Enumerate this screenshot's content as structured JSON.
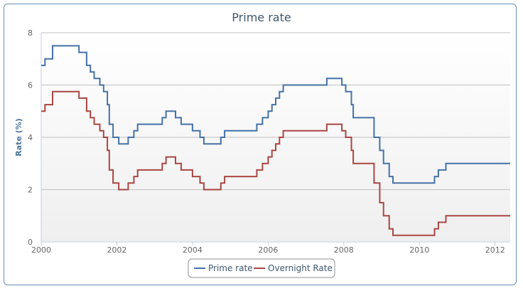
{
  "chart_data": {
    "type": "line",
    "title": "Prime rate",
    "ylabel": "Rate  (%)",
    "xlabel": "",
    "xlim": [
      2000.0,
      2012.4
    ],
    "ylim": [
      0,
      8
    ],
    "x_ticks": [
      2000,
      2002,
      2004,
      2006,
      2008,
      2010,
      2012
    ],
    "y_ticks": [
      0,
      2,
      4,
      6,
      8
    ],
    "grid": true,
    "legend_position": "bottom-center",
    "step": true,
    "series": [
      {
        "name": "Prime rate",
        "color": "#4572a7",
        "points": [
          [
            2000.0,
            6.75
          ],
          [
            2000.1,
            7.0
          ],
          [
            2000.3,
            7.5
          ],
          [
            2001.0,
            7.25
          ],
          [
            2001.2,
            6.75
          ],
          [
            2001.3,
            6.5
          ],
          [
            2001.4,
            6.25
          ],
          [
            2001.55,
            6.0
          ],
          [
            2001.65,
            5.75
          ],
          [
            2001.75,
            5.25
          ],
          [
            2001.8,
            4.5
          ],
          [
            2001.9,
            4.0
          ],
          [
            2002.05,
            3.75
          ],
          [
            2002.3,
            4.0
          ],
          [
            2002.45,
            4.25
          ],
          [
            2002.55,
            4.5
          ],
          [
            2003.2,
            4.75
          ],
          [
            2003.3,
            5.0
          ],
          [
            2003.55,
            4.75
          ],
          [
            2003.7,
            4.5
          ],
          [
            2004.0,
            4.25
          ],
          [
            2004.2,
            4.0
          ],
          [
            2004.3,
            3.75
          ],
          [
            2004.75,
            4.0
          ],
          [
            2004.85,
            4.25
          ],
          [
            2005.7,
            4.5
          ],
          [
            2005.85,
            4.75
          ],
          [
            2006.0,
            5.0
          ],
          [
            2006.1,
            5.25
          ],
          [
            2006.2,
            5.5
          ],
          [
            2006.3,
            5.75
          ],
          [
            2006.4,
            6.0
          ],
          [
            2007.55,
            6.25
          ],
          [
            2007.95,
            6.0
          ],
          [
            2008.05,
            5.75
          ],
          [
            2008.2,
            5.25
          ],
          [
            2008.25,
            4.75
          ],
          [
            2008.8,
            4.0
          ],
          [
            2008.95,
            3.5
          ],
          [
            2009.05,
            3.0
          ],
          [
            2009.2,
            2.5
          ],
          [
            2009.3,
            2.25
          ],
          [
            2010.4,
            2.5
          ],
          [
            2010.5,
            2.75
          ],
          [
            2010.7,
            3.0
          ],
          [
            2012.4,
            3.0
          ]
        ]
      },
      {
        "name": "Overnight Rate",
        "color": "#aa4643",
        "points": [
          [
            2000.0,
            5.0
          ],
          [
            2000.1,
            5.25
          ],
          [
            2000.3,
            5.75
          ],
          [
            2001.0,
            5.5
          ],
          [
            2001.2,
            5.0
          ],
          [
            2001.3,
            4.75
          ],
          [
            2001.4,
            4.5
          ],
          [
            2001.55,
            4.25
          ],
          [
            2001.65,
            4.0
          ],
          [
            2001.75,
            3.5
          ],
          [
            2001.8,
            2.75
          ],
          [
            2001.9,
            2.25
          ],
          [
            2002.05,
            2.0
          ],
          [
            2002.3,
            2.25
          ],
          [
            2002.45,
            2.5
          ],
          [
            2002.55,
            2.75
          ],
          [
            2003.2,
            3.0
          ],
          [
            2003.3,
            3.25
          ],
          [
            2003.55,
            3.0
          ],
          [
            2003.7,
            2.75
          ],
          [
            2004.0,
            2.5
          ],
          [
            2004.2,
            2.25
          ],
          [
            2004.3,
            2.0
          ],
          [
            2004.75,
            2.25
          ],
          [
            2004.85,
            2.5
          ],
          [
            2005.7,
            2.75
          ],
          [
            2005.85,
            3.0
          ],
          [
            2006.0,
            3.25
          ],
          [
            2006.1,
            3.5
          ],
          [
            2006.2,
            3.75
          ],
          [
            2006.3,
            4.0
          ],
          [
            2006.4,
            4.25
          ],
          [
            2007.55,
            4.5
          ],
          [
            2007.95,
            4.25
          ],
          [
            2008.05,
            4.0
          ],
          [
            2008.2,
            3.5
          ],
          [
            2008.25,
            3.0
          ],
          [
            2008.8,
            2.25
          ],
          [
            2008.95,
            1.5
          ],
          [
            2009.05,
            1.0
          ],
          [
            2009.2,
            0.5
          ],
          [
            2009.3,
            0.25
          ],
          [
            2010.4,
            0.5
          ],
          [
            2010.5,
            0.75
          ],
          [
            2010.7,
            1.0
          ],
          [
            2012.4,
            1.0
          ]
        ]
      }
    ]
  }
}
